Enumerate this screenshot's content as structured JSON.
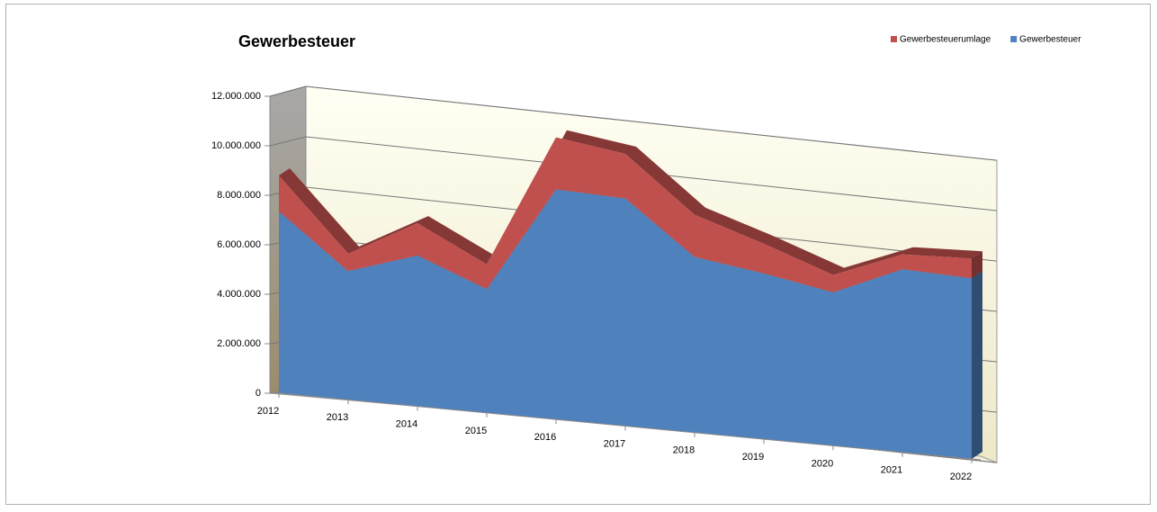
{
  "chart_data": {
    "type": "area3d",
    "title": "Gewerbesteuer",
    "categories": [
      "2012",
      "2013",
      "2014",
      "2015",
      "2016",
      "2017",
      "2018",
      "2019",
      "2020",
      "2021",
      "2022"
    ],
    "series": [
      {
        "name": "Gewerbesteuerumlage",
        "color": "#c0504d",
        "values": [
          1450000,
          700000,
          1300000,
          1000000,
          2100000,
          1800000,
          1700000,
          1200000,
          700000,
          600000,
          800000
        ]
      },
      {
        "name": "Gewerbesteuer",
        "color": "#4f81bd",
        "values": [
          7350000,
          5200000,
          6100000,
          5000000,
          9300000,
          9200000,
          7100000,
          6700000,
          6200000,
          7400000,
          7300000
        ]
      }
    ],
    "stacked": true,
    "ylim": [
      0,
      12000000
    ],
    "yticks": [
      0,
      {
        "value": 2000000,
        "label": "2.000.000"
      },
      {
        "value": 4000000,
        "label": "4.000.000"
      },
      {
        "value": 6000000,
        "label": "6.000.000"
      },
      {
        "value": 8000000,
        "label": "8.000.000"
      },
      {
        "value": 10000000,
        "label": "10.000.000"
      },
      {
        "value": 12000000,
        "label": "12.000.000"
      }
    ],
    "grid": true,
    "legend": "top-right"
  }
}
